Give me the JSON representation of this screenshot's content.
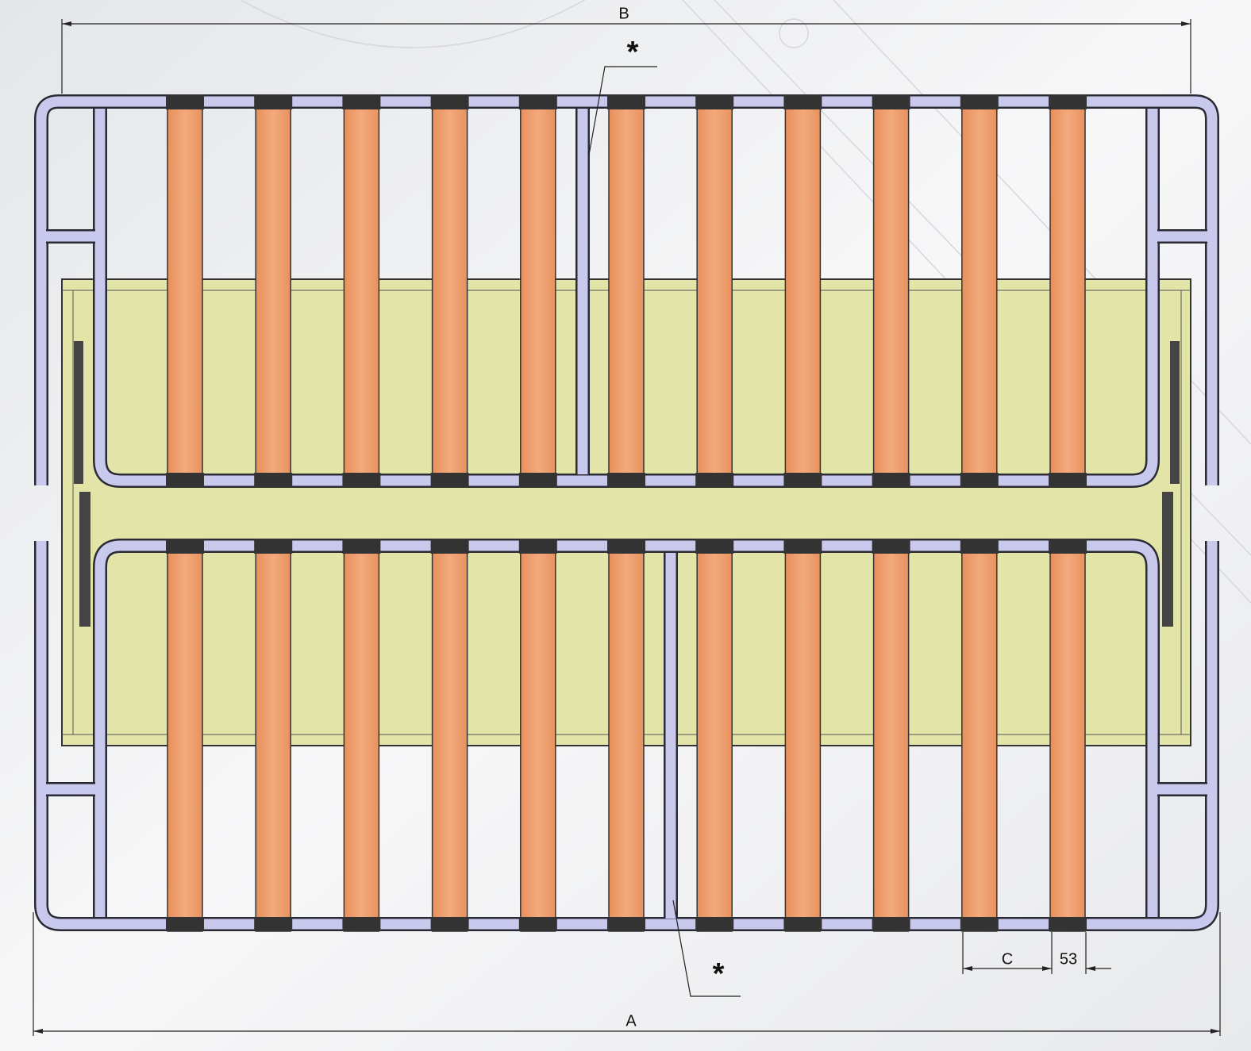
{
  "dimensions": {
    "overall_width": "A",
    "overall_depth": "B",
    "slat_pitch": "C",
    "slat_width": "53"
  },
  "notes": [
    "*",
    "*"
  ]
}
